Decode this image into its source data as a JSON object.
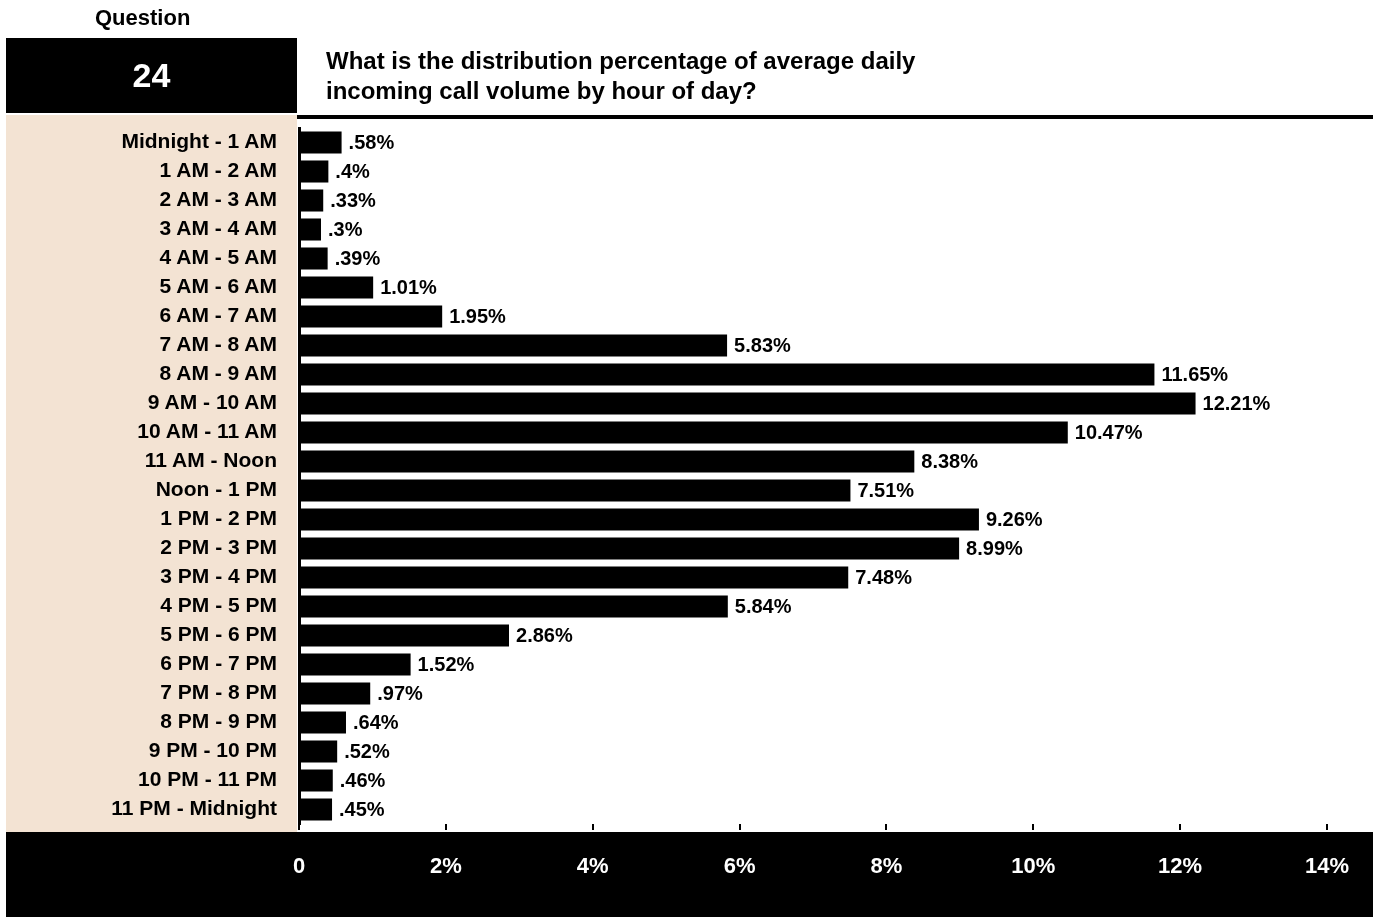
{
  "chart_data": {
    "type": "bar",
    "orientation": "horizontal",
    "title": "What is the distribution percentage of average daily incoming call volume by hour of day?",
    "annotations": [
      "Question",
      "24"
    ],
    "categories": [
      "Midnight - 1 AM",
      "1 AM - 2 AM",
      "2 AM - 3 AM",
      "3 AM - 4 AM",
      "4 AM - 5 AM",
      "5 AM - 6 AM",
      "6 AM - 7 AM",
      "7 AM - 8 AM",
      "8 AM - 9 AM",
      "9 AM - 10 AM",
      "10 AM - 11 AM",
      "11 AM - Noon",
      "Noon - 1 PM",
      "1 PM - 2 PM",
      "2 PM - 3 PM",
      "3 PM - 4 PM",
      "4 PM - 5 PM",
      "5 PM - 6 PM",
      "6 PM - 7 PM",
      "7 PM - 8 PM",
      "8 PM - 9 PM",
      "9 PM - 10 PM",
      "10 PM - 11 PM",
      "11 PM - Midnight"
    ],
    "values": [
      0.58,
      0.4,
      0.33,
      0.3,
      0.39,
      1.01,
      1.95,
      5.83,
      11.65,
      12.21,
      10.47,
      8.38,
      7.51,
      9.26,
      8.99,
      7.48,
      5.84,
      2.86,
      1.52,
      0.97,
      0.64,
      0.52,
      0.46,
      0.45
    ],
    "value_labels": [
      ".58%",
      ".4%",
      ".33%",
      ".3%",
      ".39%",
      "1.01%",
      "1.95%",
      "5.83%",
      "11.65%",
      "12.21%",
      "10.47%",
      "8.38%",
      "7.51%",
      "9.26%",
      "8.99%",
      "7.48%",
      "5.84%",
      "2.86%",
      "1.52%",
      ".97%",
      ".64%",
      ".52%",
      ".46%",
      ".45%"
    ],
    "color": "#000000",
    "xlim": [
      0,
      14
    ],
    "xticks": [
      {
        "value": 0,
        "label": "0"
      },
      {
        "value": 2,
        "label": "2%"
      },
      {
        "value": 4,
        "label": "4%"
      },
      {
        "value": 6,
        "label": "6%"
      },
      {
        "value": 8,
        "label": "8%"
      },
      {
        "value": 10,
        "label": "10%"
      },
      {
        "value": 12,
        "label": "12%"
      },
      {
        "value": 14,
        "label": "14%"
      }
    ]
  }
}
